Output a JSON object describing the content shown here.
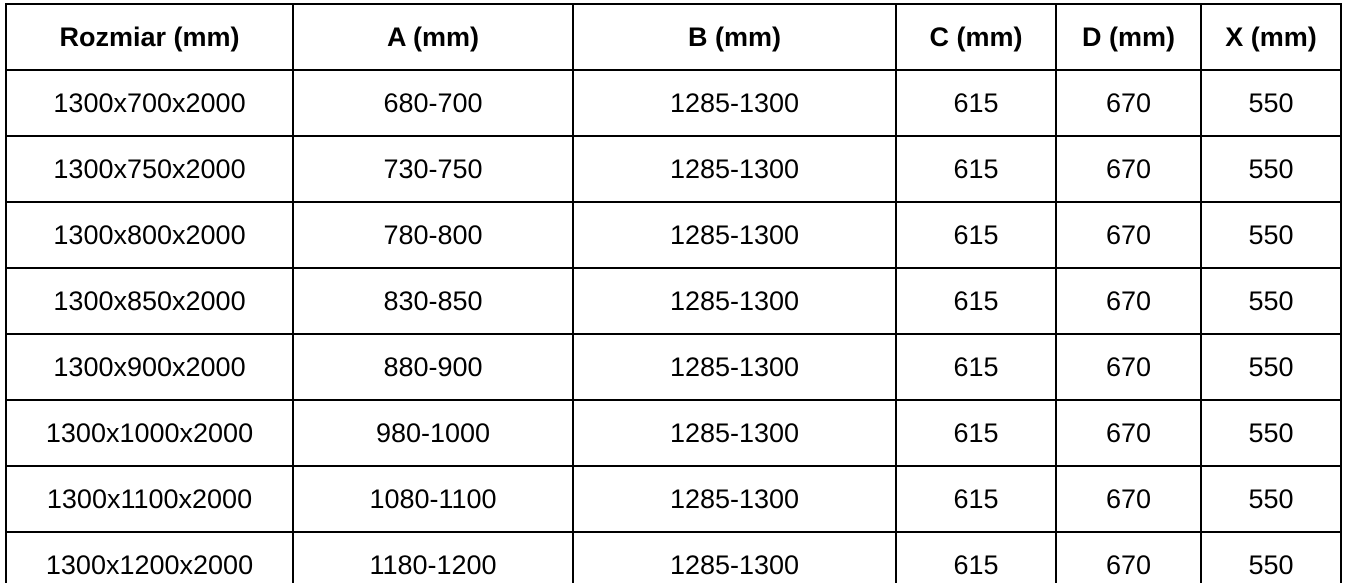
{
  "table": {
    "title": "shower-enclosure-size-specification",
    "headers": [
      {
        "label": "Rozmiar (mm)"
      },
      {
        "label": "A (mm)"
      },
      {
        "label": "B (mm)"
      },
      {
        "label": "C (mm)"
      },
      {
        "label": "D (mm)"
      },
      {
        "label": "X (mm)"
      }
    ],
    "rows": [
      [
        "1300x700x2000",
        "680-700",
        "1285-1300",
        "615",
        "670",
        "550"
      ],
      [
        "1300x750x2000",
        "730-750",
        "1285-1300",
        "615",
        "670",
        "550"
      ],
      [
        "1300x800x2000",
        "780-800",
        "1285-1300",
        "615",
        "670",
        "550"
      ],
      [
        "1300x850x2000",
        "830-850",
        "1285-1300",
        "615",
        "670",
        "550"
      ],
      [
        "1300x900x2000",
        "880-900",
        "1285-1300",
        "615",
        "670",
        "550"
      ],
      [
        "1300x1000x2000",
        "980-1000",
        "1285-1300",
        "615",
        "670",
        "550"
      ],
      [
        "1300x1100x2000",
        "1080-1100",
        "1285-1300",
        "615",
        "670",
        "550"
      ],
      [
        "1300x1200x2000",
        "1180-1200",
        "1285-1300",
        "615",
        "670",
        "550"
      ]
    ],
    "colors": {
      "border": "#000000",
      "text": "#000000",
      "background": "#ffffff"
    }
  }
}
